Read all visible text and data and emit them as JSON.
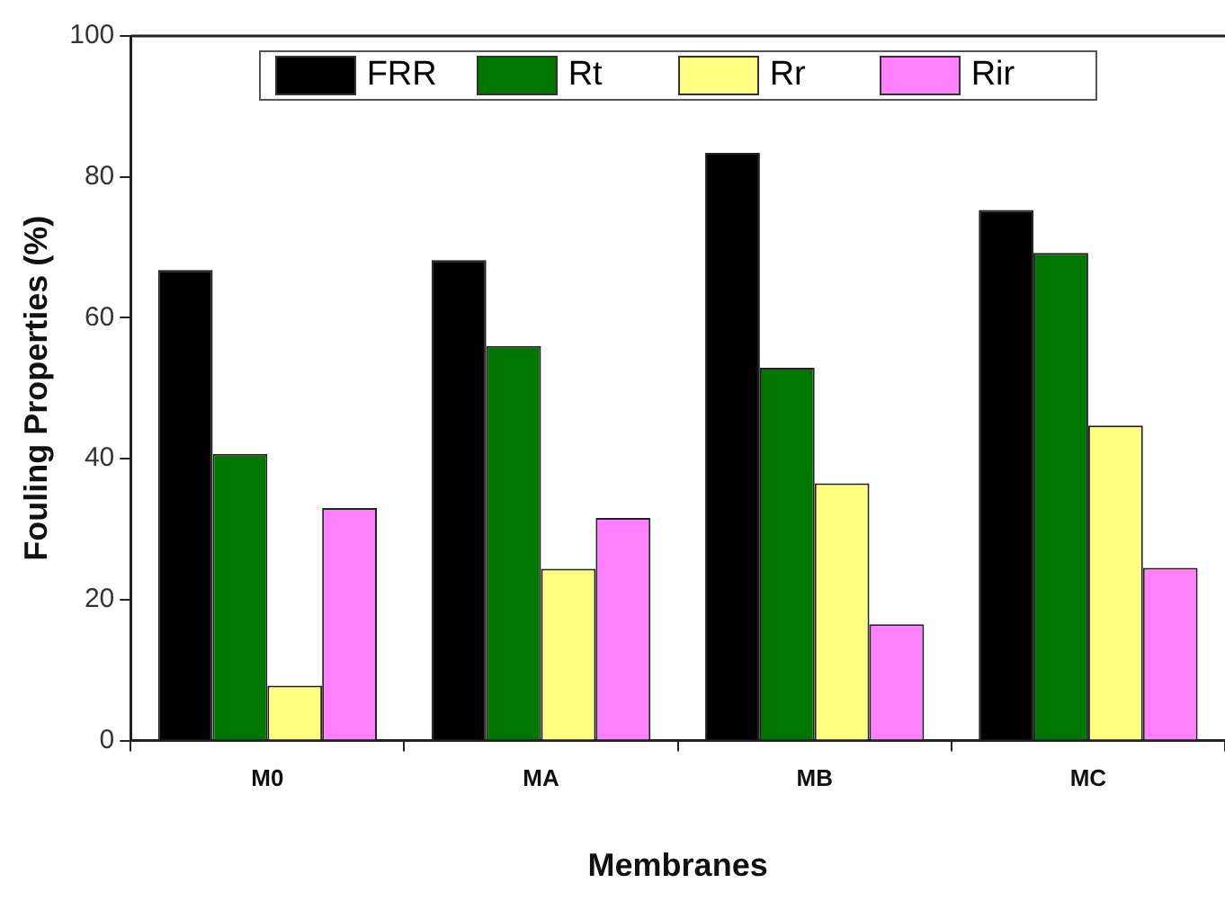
{
  "chart_data": {
    "type": "bar",
    "xlabel": "Membranes",
    "ylabel": "Fouling Properties (%)",
    "categories": [
      "M0",
      "MA",
      "MB",
      "MC"
    ],
    "series": [
      {
        "name": "FRR",
        "color": "#000000",
        "values": [
          66.8,
          68.2,
          83.4,
          75.3
        ]
      },
      {
        "name": "Rt",
        "color": "#007700",
        "values": [
          40.7,
          56.0,
          52.9,
          69.2
        ]
      },
      {
        "name": "Rr",
        "color": "#ffff80",
        "values": [
          7.8,
          24.4,
          36.5,
          44.7
        ]
      },
      {
        "name": "Rir",
        "color": "#ff80ff",
        "values": [
          33.0,
          31.6,
          16.5,
          24.5
        ]
      }
    ],
    "ylim": [
      0,
      100
    ],
    "yticks": [
      0,
      20,
      40,
      60,
      80,
      100
    ],
    "grid": false,
    "legend": "top"
  }
}
